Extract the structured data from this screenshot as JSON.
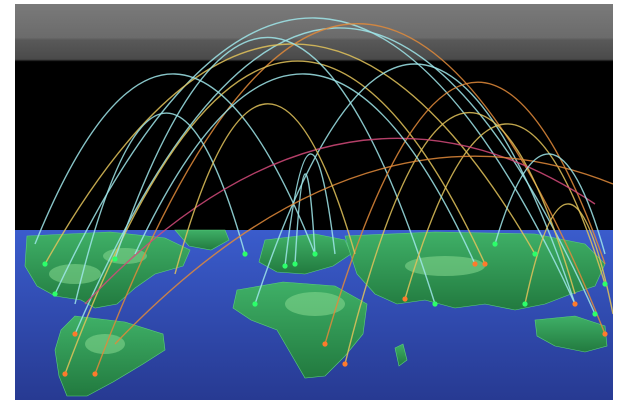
{
  "scene": {
    "subject": "network-arcs-over-world-map",
    "colors": {
      "sky_top": "#6f6f6f",
      "sky_mid": "#555555",
      "sky_dark": "#000000",
      "ocean": "#2f4fb8",
      "ocean_deep": "#2a3f9c",
      "land": "#2f9a52",
      "land_light": "#7fd18c",
      "arc_cyan": "#9fe6ea",
      "arc_yellow": "#e2c35a",
      "arc_orange": "#e08a3a",
      "arc_pink": "#d44a7a",
      "node_green": "#2cff6a",
      "node_orange": "#ff7a2c"
    }
  }
}
